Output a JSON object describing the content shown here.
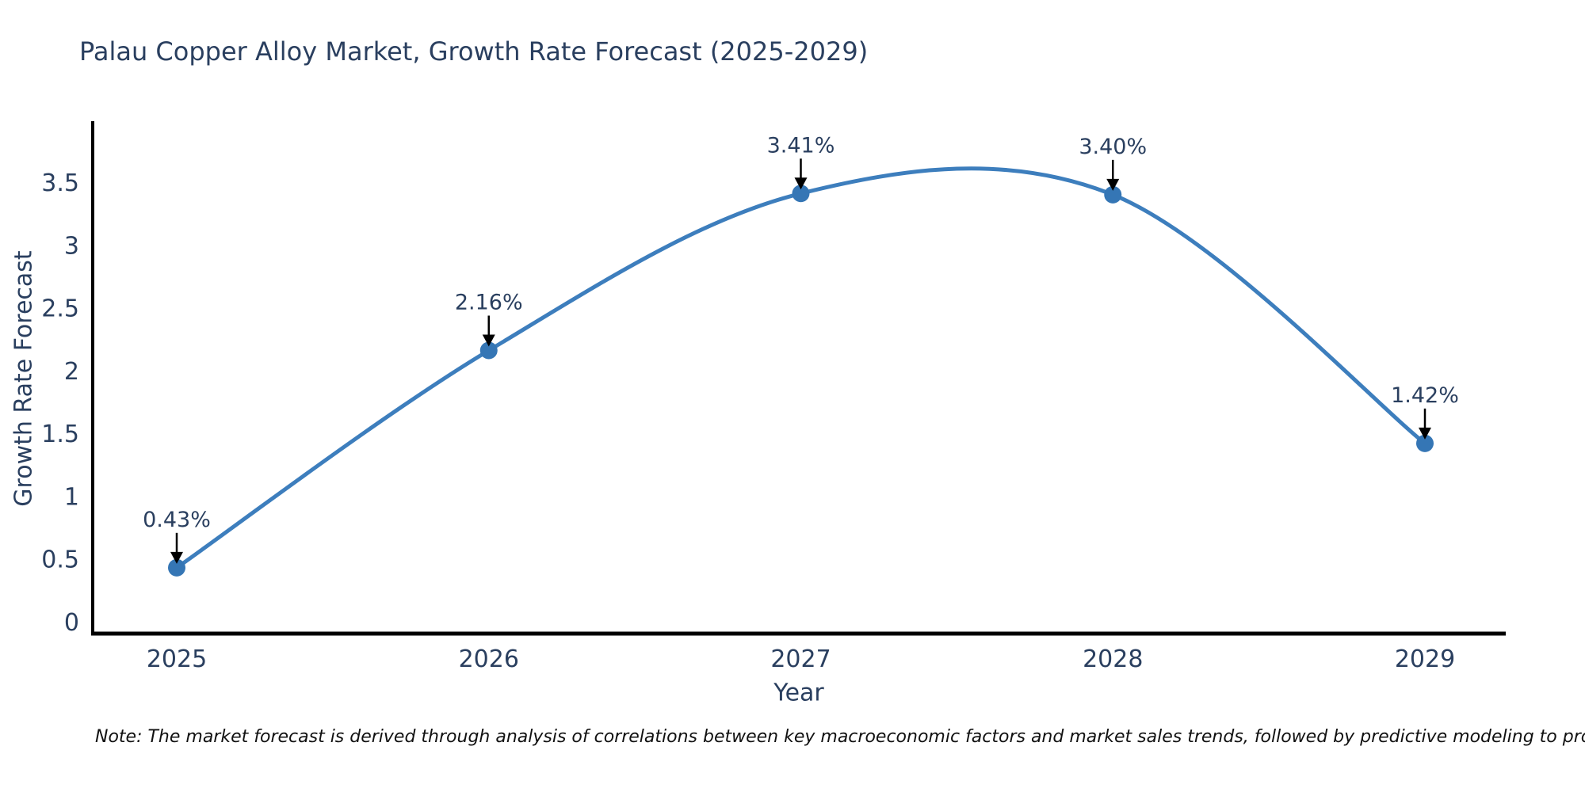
{
  "chart": {
    "title": "Palau Copper Alloy Market, Growth Rate Forecast (2025-2029)",
    "xlabel": "Year",
    "ylabel": "Growth Rate Forecast"
  },
  "chart_data": {
    "type": "line",
    "title": "Palau Copper Alloy Market, Growth Rate Forecast (2025-2029)",
    "xlabel": "Year",
    "ylabel": "Growth Rate Forecast",
    "categories": [
      "2025",
      "2026",
      "2027",
      "2028",
      "2029"
    ],
    "values": [
      0.43,
      2.16,
      3.41,
      3.4,
      1.42
    ],
    "point_labels": [
      "0.43%",
      "2.16%",
      "3.41%",
      "3.40%",
      "1.42%"
    ],
    "yticks": [
      "0",
      "0.5",
      "1",
      "1.5",
      "2",
      "2.5",
      "3",
      "3.5"
    ],
    "ytick_values": [
      0,
      0.5,
      1,
      1.5,
      2,
      2.5,
      3,
      3.5
    ],
    "ylim": [
      0,
      3.75
    ],
    "line_shape": "spline",
    "grid": false,
    "legend": false,
    "colors": {
      "line": "#3d7ebd",
      "marker": "#3576b5",
      "arrow": "#000000",
      "axis": "#000000",
      "text": "#2a3f5f"
    }
  },
  "note": {
    "text": "Note: The market forecast is derived through analysis of correlations between key macroeconomic factors and market sales trends, followed by predictive modeling to project future sales"
  }
}
